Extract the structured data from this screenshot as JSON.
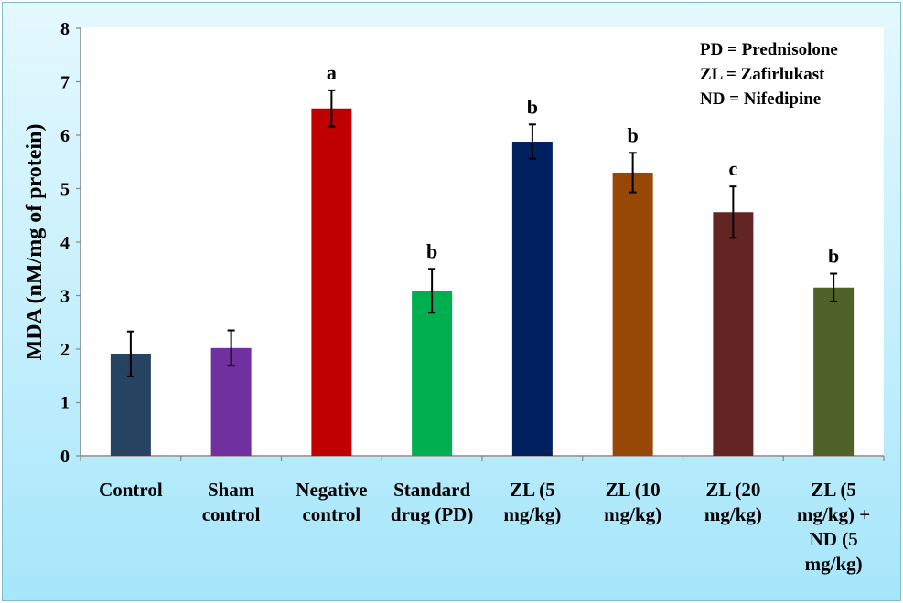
{
  "chart_data": {
    "type": "bar",
    "title": "",
    "xlabel": "",
    "ylabel": "MDA (nM/mg of protein)",
    "ylim": [
      0,
      8
    ],
    "yticks": [
      0,
      1,
      2,
      3,
      4,
      5,
      6,
      7,
      8
    ],
    "grid": false,
    "categories": [
      [
        "Control"
      ],
      [
        "Sham",
        "control"
      ],
      [
        "Negative",
        "control"
      ],
      [
        "Standard",
        "drug (PD)"
      ],
      [
        "ZL (5",
        "mg/kg)"
      ],
      [
        "ZL (10",
        "mg/kg)"
      ],
      [
        "ZL (20",
        "mg/kg)"
      ],
      [
        "ZL (5",
        "mg/kg) +",
        "ND (5",
        "mg/kg)"
      ]
    ],
    "values": [
      1.91,
      2.02,
      6.5,
      3.09,
      5.88,
      5.3,
      4.56,
      3.15
    ],
    "errors": [
      0.42,
      0.33,
      0.34,
      0.41,
      0.32,
      0.37,
      0.48,
      0.26
    ],
    "significance_labels": [
      "",
      "",
      "a",
      "b",
      "b",
      "b",
      "c",
      "b"
    ],
    "colors": [
      "#264361",
      "#7030a0",
      "#c00000",
      "#00b050",
      "#002060",
      "#974706",
      "#632523",
      "#4f6228"
    ],
    "annotations": [
      "PD = Prednisolone",
      "ZL = Zafirlukast",
      "ND = Nifedipine"
    ],
    "legend": "none"
  }
}
